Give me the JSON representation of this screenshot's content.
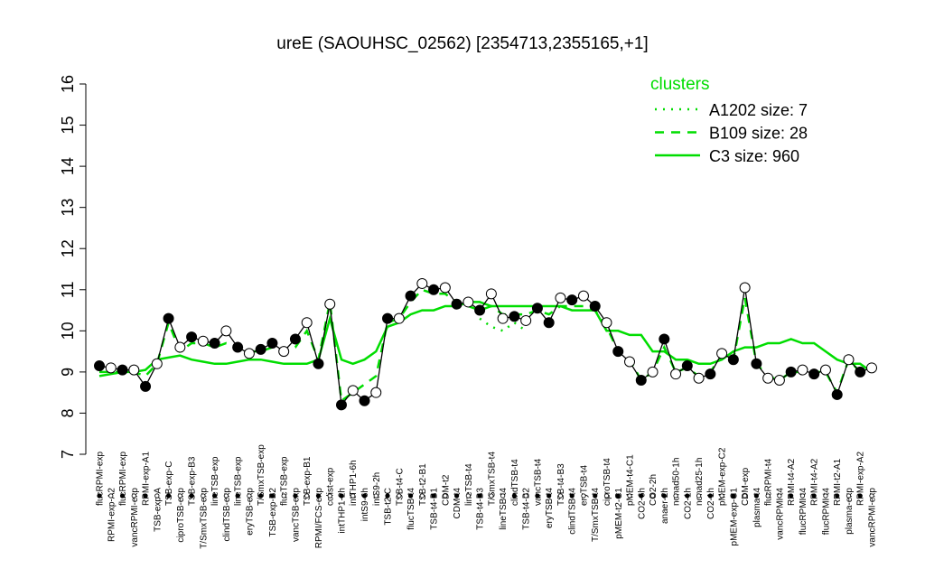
{
  "chart_data": {
    "type": "line",
    "title": "ureE (SAOUHSC_02562) [2354713,2355165,+1]",
    "categories": [
      "flucRPMI-exp",
      "RPMI-exp-A2",
      "flucRPMI-exp",
      "vancRPMI-exp",
      "RPMI-exp-A1",
      "TSB-exp-A",
      "TSB-exp-C",
      "ciproTSB-exp",
      "TSB-exp-B3",
      "T/SmxTSB-exp",
      "lineTSB-exp",
      "clindTSB-exp",
      "lineTSB-exp",
      "eryTSB-exp",
      "T/SmxTSB-exp",
      "TSB-exp-B2",
      "flucTSB-exp",
      "vancTSB-exp",
      "TSB-exp-B1",
      "RPMI/FCS-exp",
      "colist-exp",
      "intTHP1-2h",
      "intTHP1-6h",
      "intS9-6h",
      "intS9-2h",
      "TSB-t2-C",
      "TSB-t4-C",
      "flucTSB-t4",
      "TSB-t2-B1",
      "TSB-t4-B1",
      "CDM-t2",
      "CDM-t4",
      "lineTSB-t4",
      "TSB-t4-B3",
      "T/SmxTSB-t4",
      "lineTSB-t4",
      "clindTSB-t4",
      "TSB-t4-B2",
      "vancTSB-t4",
      "eryTSB-t4",
      "TSB-t4-B3",
      "clindTSB-t4",
      "eryTSB-t4",
      "T/SmxTSB-t4",
      "ciproTSB-t4",
      "pMEM-t2-C1",
      "pMEM-t4-C1",
      "CO2-6h",
      "CO2-2h",
      "anaer-2h",
      "nonad50-1h",
      "CO2-1h",
      "nonad25-1h",
      "CO2-1h",
      "pMEM-exp-C2",
      "pMEM-exp-C1",
      "CDM-exp",
      "plasma-t4",
      "flucRPMI-t4",
      "vancRPMI-t4",
      "RPMI-t4-A2",
      "flucRPMI-t4",
      "RPMI-t4-A2",
      "flucRPMI-t4",
      "RPMI-t2-A1",
      "plasma-exp",
      "RPMI-exp-A2",
      "vancRPMI-exp"
    ],
    "values": [
      9.15,
      9.1,
      9.05,
      9.05,
      8.65,
      9.2,
      10.3,
      9.6,
      9.85,
      9.75,
      9.7,
      10.0,
      9.6,
      9.45,
      9.55,
      9.7,
      9.5,
      9.8,
      10.2,
      9.2,
      10.65,
      8.2,
      8.55,
      8.3,
      8.5,
      10.3,
      10.3,
      10.85,
      11.15,
      11.0,
      11.05,
      10.65,
      10.7,
      10.5,
      10.9,
      10.3,
      10.35,
      10.25,
      10.55,
      10.2,
      10.8,
      10.75,
      10.85,
      10.6,
      10.2,
      9.5,
      9.25,
      8.8,
      9.0,
      9.8,
      8.95,
      9.15,
      8.85,
      8.95,
      9.45,
      9.3,
      11.05,
      9.2,
      8.85,
      8.8,
      9.0,
      9.05,
      8.95,
      9.05,
      8.45,
      9.3,
      9.0,
      9.1
    ],
    "marker_filled": [
      true,
      false,
      true,
      false,
      true,
      false,
      true,
      false,
      true,
      false,
      true,
      false,
      true,
      false,
      true,
      true,
      false,
      true,
      false,
      true,
      false,
      true,
      false,
      true,
      false,
      true,
      false,
      true,
      false,
      true,
      false,
      true,
      false,
      true,
      false,
      false,
      true,
      false,
      true,
      true,
      false,
      true,
      false,
      true,
      false,
      true,
      false,
      true,
      false,
      true,
      false,
      true,
      false,
      true,
      false,
      true,
      false,
      true,
      false,
      false,
      true,
      false,
      true,
      false,
      true,
      false,
      true,
      false
    ],
    "color": "#000000",
    "ylim": [
      7,
      16
    ],
    "yticks": [
      7,
      8,
      9,
      10,
      11,
      12,
      13,
      14,
      15,
      16
    ],
    "legend_title": "clusters",
    "legend": "top-right",
    "series": [
      {
        "name": "A1202 size: 7",
        "color": "#00dd00",
        "linestyle": "dotted",
        "values": [
          null,
          null,
          null,
          null,
          null,
          null,
          null,
          null,
          null,
          null,
          null,
          null,
          null,
          null,
          null,
          null,
          null,
          null,
          null,
          null,
          null,
          null,
          null,
          null,
          null,
          null,
          null,
          null,
          null,
          null,
          null,
          null,
          null,
          10.3,
          10.1,
          10.0,
          10.2,
          10.0,
          null,
          null,
          null,
          null,
          null,
          null,
          null,
          null,
          null,
          null,
          null,
          null,
          null,
          null,
          null,
          null,
          null,
          null,
          null,
          null,
          null,
          null,
          null,
          null,
          null,
          null,
          null,
          null,
          null,
          null
        ]
      },
      {
        "name": "B109 size: 28",
        "color": "#00dd00",
        "linestyle": "dashed",
        "values": [
          9.0,
          9.0,
          9.0,
          9.0,
          8.9,
          9.2,
          10.2,
          9.5,
          9.7,
          9.7,
          9.6,
          9.7,
          9.6,
          9.5,
          9.5,
          9.6,
          9.5,
          9.6,
          10.0,
          9.3,
          10.7,
          8.3,
          8.5,
          8.7,
          8.9,
          10.2,
          10.3,
          10.7,
          11.0,
          10.9,
          10.9,
          10.7,
          10.6,
          10.5,
          10.6,
          10.4,
          10.4,
          10.4,
          10.5,
          10.4,
          10.6,
          10.6,
          10.6,
          10.5,
          10.1,
          9.5,
          9.3,
          8.8,
          9.0,
          9.6,
          9.0,
          9.1,
          8.9,
          9.0,
          9.4,
          9.3,
          10.8,
          9.2,
          8.9,
          8.8,
          9.0,
          9.0,
          9.0,
          9.0,
          8.5,
          9.3,
          9.0,
          9.1
        ]
      },
      {
        "name": "C3 size: 960",
        "color": "#00dd00",
        "linestyle": "solid",
        "values": [
          8.9,
          8.95,
          9.0,
          9.0,
          9.05,
          9.3,
          9.35,
          9.4,
          9.3,
          9.25,
          9.2,
          9.2,
          9.25,
          9.3,
          9.3,
          9.25,
          9.2,
          9.2,
          9.2,
          9.3,
          10.3,
          9.3,
          9.2,
          9.3,
          9.5,
          10.1,
          10.2,
          10.4,
          10.5,
          10.5,
          10.6,
          10.6,
          10.7,
          10.7,
          10.6,
          10.6,
          10.6,
          10.6,
          10.6,
          10.6,
          10.6,
          10.5,
          10.5,
          10.5,
          10.0,
          10.0,
          9.9,
          9.9,
          9.5,
          9.5,
          9.3,
          9.3,
          9.2,
          9.2,
          9.3,
          9.5,
          9.6,
          9.6,
          9.7,
          9.7,
          9.8,
          9.7,
          9.7,
          9.5,
          9.3,
          9.2,
          9.2,
          9.0
        ]
      }
    ]
  }
}
